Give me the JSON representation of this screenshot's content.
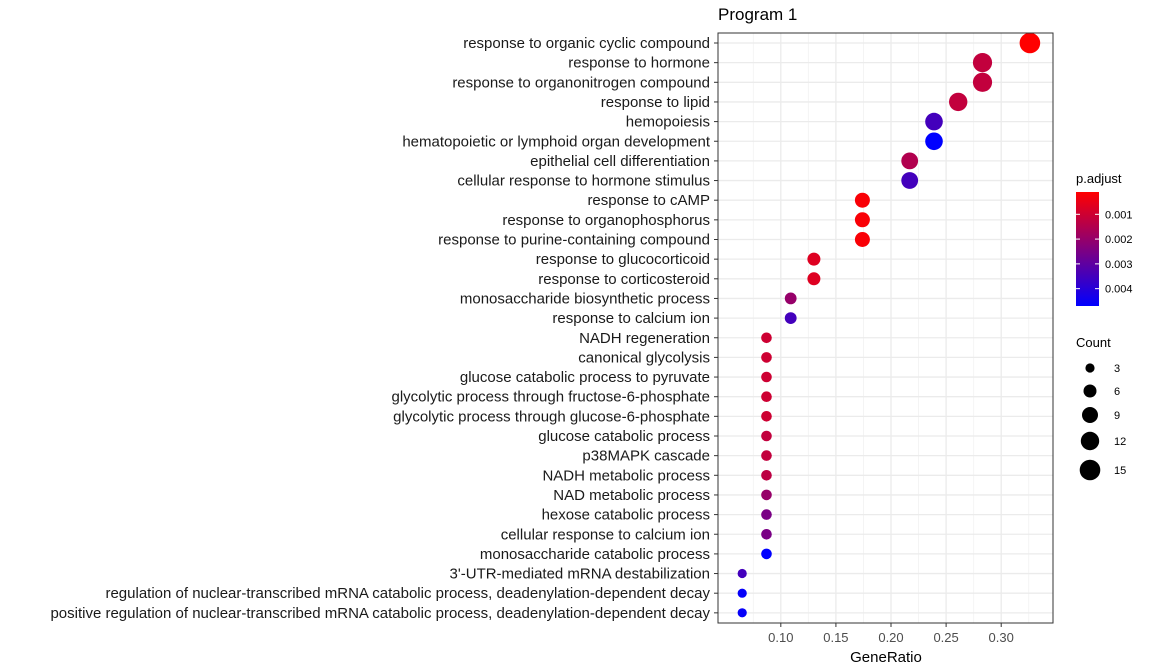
{
  "chart_data": {
    "type": "scatter",
    "title": "Program 1",
    "xlabel": "GeneRatio",
    "ylabel": "",
    "xlim": [
      0.043,
      0.347
    ],
    "x_ticks": [
      0.1,
      0.15,
      0.2,
      0.25,
      0.3
    ],
    "x_tick_labels": [
      "0.10",
      "0.15",
      "0.20",
      "0.25",
      "0.30"
    ],
    "grid": true,
    "color_variable": "p.adjust",
    "size_variable": "Count",
    "color_scale": {
      "low_value_color": "#ff0000",
      "high_value_color": "#0000ff",
      "min": 0.0001,
      "max": 0.0047
    },
    "color_legend": {
      "title": "p.adjust",
      "ticks": [
        0.001,
        0.002,
        0.003,
        0.004
      ],
      "tick_labels": [
        "0.001",
        "0.002",
        "0.003",
        "0.004"
      ]
    },
    "size_legend": {
      "title": "Count",
      "values": [
        3,
        6,
        9,
        12,
        15
      ],
      "labels": [
        "3",
        "6",
        "9",
        "12",
        "15"
      ]
    },
    "terms": [
      "response to organic cyclic compound",
      "response to hormone",
      "response to organonitrogen compound",
      "response to lipid",
      "hemopoiesis",
      "hematopoietic or lymphoid organ development",
      "epithelial cell differentiation",
      "cellular response to hormone stimulus",
      "response to cAMP",
      "response to organophosphorus",
      "response to purine-containing compound",
      "response to glucocorticoid",
      "response to corticosteroid",
      "monosaccharide biosynthetic process",
      "response to calcium ion",
      "NADH regeneration",
      "canonical glycolysis",
      "glucose catabolic process to pyruvate",
      "glycolytic process through fructose-6-phosphate",
      "glycolytic process through glucose-6-phosphate",
      "glucose catabolic process",
      "p38MAPK cascade",
      "NADH metabolic process",
      "NAD metabolic process",
      "hexose catabolic process",
      "cellular response to calcium ion",
      "monosaccharide catabolic process",
      "3'-UTR-mediated mRNA destabilization",
      "regulation of nuclear-transcribed mRNA catabolic process, deadenylation-dependent decay",
      "positive regulation of nuclear-transcribed mRNA catabolic process, deadenylation-dependent decay"
    ],
    "gene_ratio": [
      0.326,
      0.283,
      0.283,
      0.261,
      0.239,
      0.239,
      0.217,
      0.217,
      0.174,
      0.174,
      0.174,
      0.13,
      0.13,
      0.109,
      0.109,
      0.087,
      0.087,
      0.087,
      0.087,
      0.087,
      0.087,
      0.087,
      0.087,
      0.087,
      0.087,
      0.087,
      0.087,
      0.065,
      0.065,
      0.065
    ],
    "count": [
      15,
      13,
      13,
      12,
      11,
      11,
      10,
      10,
      8,
      8,
      8,
      6,
      6,
      5,
      5,
      4,
      4,
      4,
      4,
      4,
      4,
      4,
      4,
      4,
      4,
      4,
      4,
      3,
      3,
      3
    ],
    "p_adjust": [
      0.0001,
      0.0012,
      0.0012,
      0.0012,
      0.0035,
      0.0047,
      0.0015,
      0.0035,
      0.0002,
      0.0002,
      0.0002,
      0.0007,
      0.0007,
      0.002,
      0.0035,
      0.001,
      0.001,
      0.001,
      0.001,
      0.001,
      0.0012,
      0.0012,
      0.0013,
      0.002,
      0.0025,
      0.0025,
      0.0047,
      0.0035,
      0.0046,
      0.0046
    ]
  }
}
